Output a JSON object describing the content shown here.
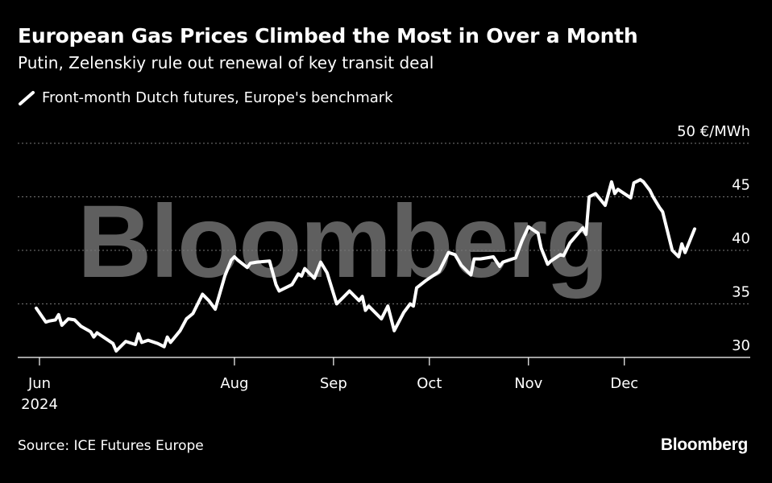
{
  "header": {
    "title": "European Gas Prices Climbed the Most in Over a Month",
    "subtitle": "Putin, Zelenskiy rule out renewal of key transit deal"
  },
  "legend": {
    "label": "Front-month Dutch futures, Europe's benchmark"
  },
  "watermark": {
    "text": "Bloomberg"
  },
  "footer": {
    "source": "Source: ICE Futures Europe",
    "logo": "Bloomberg"
  },
  "colors": {
    "background": "#000000",
    "line": "#ffffff",
    "grid": "#777777",
    "watermark": "#5f5f5f"
  },
  "chart_data": {
    "type": "line",
    "title": "European Gas Prices Climbed the Most in Over a Month",
    "subtitle": "Putin, Zelenskiy rule out renewal of key transit deal",
    "ylabel": "",
    "y_unit_label": "50 €/MWh",
    "ylim": [
      30,
      50
    ],
    "y_ticks": [
      30,
      35,
      40,
      45,
      50
    ],
    "y_tick_labels": [
      "30",
      "35",
      "40",
      "45",
      "50 €/MWh"
    ],
    "y_axis_position": "right",
    "grid": "horizontal dotted",
    "legend_position": "top-left",
    "xlim": [
      "2024-06-01",
      "2024-12-23"
    ],
    "x_ticks": [
      {
        "date": "2024-06-01",
        "label": "Jun",
        "sublabel": "2024"
      },
      {
        "date": "2024-08-01",
        "label": "Aug"
      },
      {
        "date": "2024-09-01",
        "label": "Sep"
      },
      {
        "date": "2024-10-01",
        "label": "Oct"
      },
      {
        "date": "2024-11-01",
        "label": "Nov"
      },
      {
        "date": "2024-12-01",
        "label": "Dec"
      }
    ],
    "series": [
      {
        "name": "Front-month Dutch futures, Europe's benchmark",
        "points": [
          [
            "2024-05-31",
            34.6
          ],
          [
            "2024-06-03",
            33.3
          ],
          [
            "2024-06-04",
            33.4
          ],
          [
            "2024-06-06",
            33.5
          ],
          [
            "2024-06-07",
            34.0
          ],
          [
            "2024-06-08",
            33.0
          ],
          [
            "2024-06-10",
            33.6
          ],
          [
            "2024-06-12",
            33.5
          ],
          [
            "2024-06-14",
            32.9
          ],
          [
            "2024-06-17",
            32.4
          ],
          [
            "2024-06-18",
            31.9
          ],
          [
            "2024-06-19",
            32.3
          ],
          [
            "2024-06-21",
            31.9
          ],
          [
            "2024-06-24",
            31.3
          ],
          [
            "2024-06-25",
            30.6
          ],
          [
            "2024-06-26",
            30.9
          ],
          [
            "2024-06-28",
            31.5
          ],
          [
            "2024-07-01",
            31.2
          ],
          [
            "2024-07-02",
            32.2
          ],
          [
            "2024-07-03",
            31.4
          ],
          [
            "2024-07-05",
            31.6
          ],
          [
            "2024-07-08",
            31.3
          ],
          [
            "2024-07-10",
            31.0
          ],
          [
            "2024-07-11",
            31.9
          ],
          [
            "2024-07-12",
            31.4
          ],
          [
            "2024-07-15",
            32.5
          ],
          [
            "2024-07-17",
            33.6
          ],
          [
            "2024-07-19",
            34.1
          ],
          [
            "2024-07-22",
            35.9
          ],
          [
            "2024-07-24",
            35.3
          ],
          [
            "2024-07-26",
            34.5
          ],
          [
            "2024-07-29",
            37.6
          ],
          [
            "2024-07-31",
            39.1
          ],
          [
            "2024-08-01",
            39.4
          ],
          [
            "2024-08-02",
            39.1
          ],
          [
            "2024-08-05",
            38.4
          ],
          [
            "2024-08-06",
            38.8
          ],
          [
            "2024-08-08",
            38.9
          ],
          [
            "2024-08-12",
            39.0
          ],
          [
            "2024-08-14",
            36.8
          ],
          [
            "2024-08-15",
            36.2
          ],
          [
            "2024-08-19",
            36.8
          ],
          [
            "2024-08-21",
            37.8
          ],
          [
            "2024-08-22",
            37.6
          ],
          [
            "2024-08-23",
            38.3
          ],
          [
            "2024-08-26",
            37.4
          ],
          [
            "2024-08-28",
            38.9
          ],
          [
            "2024-08-30",
            37.9
          ],
          [
            "2024-09-02",
            35.0
          ],
          [
            "2024-09-04",
            35.6
          ],
          [
            "2024-09-06",
            36.2
          ],
          [
            "2024-09-09",
            35.3
          ],
          [
            "2024-09-10",
            35.7
          ],
          [
            "2024-09-11",
            34.4
          ],
          [
            "2024-09-12",
            34.8
          ],
          [
            "2024-09-16",
            33.6
          ],
          [
            "2024-09-18",
            34.8
          ],
          [
            "2024-09-20",
            32.5
          ],
          [
            "2024-09-23",
            34.2
          ],
          [
            "2024-09-25",
            35.0
          ],
          [
            "2024-09-26",
            34.8
          ],
          [
            "2024-09-27",
            36.5
          ],
          [
            "2024-09-30",
            37.2
          ],
          [
            "2024-10-02",
            37.6
          ],
          [
            "2024-10-04",
            38.0
          ],
          [
            "2024-10-07",
            39.8
          ],
          [
            "2024-10-09",
            39.6
          ],
          [
            "2024-10-11",
            38.6
          ],
          [
            "2024-10-14",
            37.7
          ],
          [
            "2024-10-15",
            39.2
          ],
          [
            "2024-10-17",
            39.2
          ],
          [
            "2024-10-21",
            39.4
          ],
          [
            "2024-10-23",
            38.5
          ],
          [
            "2024-10-24",
            38.9
          ],
          [
            "2024-10-28",
            39.3
          ],
          [
            "2024-10-30",
            40.9
          ],
          [
            "2024-11-01",
            42.2
          ],
          [
            "2024-11-04",
            41.6
          ],
          [
            "2024-11-05",
            40.2
          ],
          [
            "2024-11-07",
            38.7
          ],
          [
            "2024-11-08",
            39.0
          ],
          [
            "2024-11-11",
            39.6
          ],
          [
            "2024-11-12",
            39.5
          ],
          [
            "2024-11-14",
            40.7
          ],
          [
            "2024-11-18",
            42.1
          ],
          [
            "2024-11-19",
            41.5
          ],
          [
            "2024-11-20",
            45.0
          ],
          [
            "2024-11-22",
            45.3
          ],
          [
            "2024-11-25",
            44.2
          ],
          [
            "2024-11-27",
            46.4
          ],
          [
            "2024-11-28",
            45.3
          ],
          [
            "2024-11-29",
            45.7
          ],
          [
            "2024-12-03",
            44.9
          ],
          [
            "2024-12-04",
            46.3
          ],
          [
            "2024-12-06",
            46.6
          ],
          [
            "2024-12-07",
            46.4
          ],
          [
            "2024-12-09",
            45.6
          ],
          [
            "2024-12-10",
            45.0
          ],
          [
            "2024-12-12",
            44.0
          ],
          [
            "2024-12-13",
            43.6
          ],
          [
            "2024-12-16",
            40.0
          ],
          [
            "2024-12-18",
            39.4
          ],
          [
            "2024-12-19",
            40.6
          ],
          [
            "2024-12-20",
            39.8
          ],
          [
            "2024-12-23",
            42.0
          ]
        ]
      }
    ]
  }
}
